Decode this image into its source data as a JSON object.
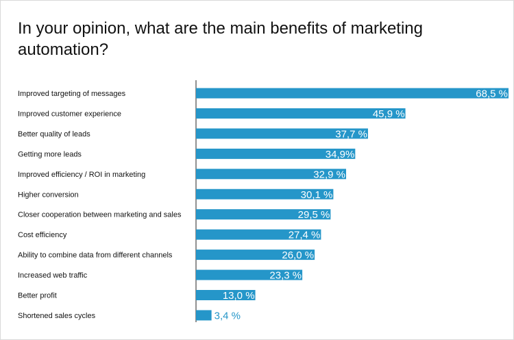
{
  "chart_data": {
    "type": "bar",
    "orientation": "horizontal",
    "title": "In your opinion, what are the main benefits of marketing automation?",
    "xlabel": "",
    "ylabel": "",
    "xlim": [
      0,
      68.5
    ],
    "grid": false,
    "legend": "none",
    "bar_color": "#2596c9",
    "label_color_inside": "#ffffff",
    "label_color_outside": "#2596c9",
    "categories": [
      "Improved targeting of messages",
      "Improved customer experience",
      "Better quality of leads",
      "Getting more leads",
      "Improved efficiency / ROI in marketing",
      "Higher conversion",
      "Closer cooperation between marketing and sales",
      "Cost efficiency",
      "Ability to combine data from different channels",
      "Increased web traffic",
      "Better profit",
      "Shortened sales cycles"
    ],
    "values": [
      68.5,
      45.9,
      37.7,
      34.9,
      32.9,
      30.1,
      29.5,
      27.4,
      26.0,
      23.3,
      13.0,
      3.4
    ],
    "value_labels": [
      "68,5 %",
      "45,9 %",
      "37,7 %",
      "34,9%",
      "32,9 %",
      "30,1 %",
      "29,5 %",
      "27,4 %",
      "26,0 %",
      "23,3 %",
      "13,0 %",
      "3,4 %"
    ]
  }
}
